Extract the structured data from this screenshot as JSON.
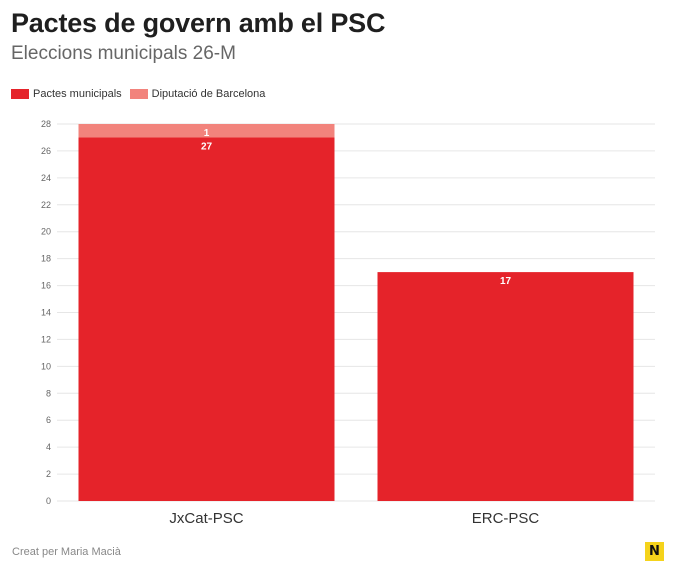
{
  "header": {
    "title": "Pactes de govern amb el PSC",
    "subtitle": "Eleccions municipals 26-M"
  },
  "footer": {
    "credit": "Creat per Maria Macià",
    "logo_letter": "N"
  },
  "colors": {
    "series_primary": "#e5232a",
    "series_secondary": "#f2837c",
    "grid": "#e6e6e6",
    "logo": "#f5d31b"
  },
  "chart_data": {
    "type": "bar",
    "stacked": true,
    "categories": [
      "JxCat-PSC",
      "ERC-PSC"
    ],
    "series": [
      {
        "name": "Pactes municipals",
        "values": [
          27,
          17
        ],
        "labels": [
          "27",
          "17"
        ]
      },
      {
        "name": "Diputació de Barcelona",
        "values": [
          1,
          0
        ],
        "labels": [
          "1",
          ""
        ]
      }
    ],
    "title": "Pactes de govern amb el PSC",
    "subtitle": "Eleccions municipals 26-M",
    "ylim": [
      0,
      28
    ],
    "yticks": [
      "0",
      "2",
      "4",
      "6",
      "8",
      "10",
      "12",
      "14",
      "16",
      "18",
      "20",
      "22",
      "24",
      "26",
      "28"
    ],
    "grid": true,
    "legend": "top-left"
  }
}
